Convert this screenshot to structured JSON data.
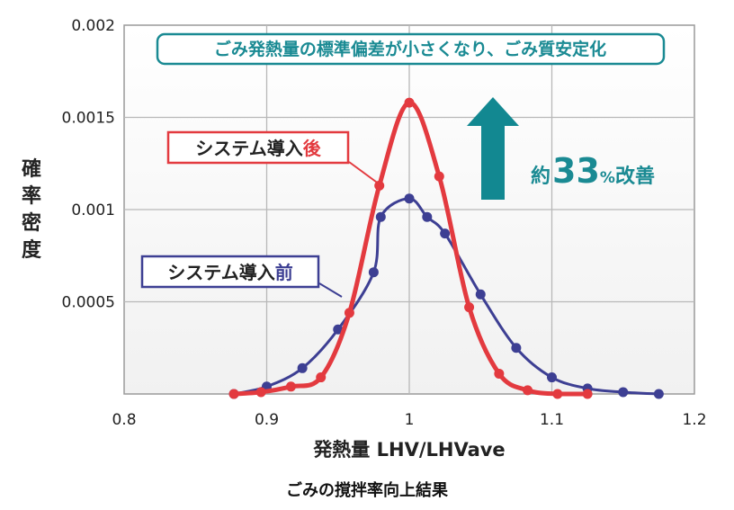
{
  "chart_data": {
    "type": "line",
    "title": "",
    "ylabel": "確率密度",
    "xlabel": "発熱量 LHV/LHVave",
    "caption": "ごみの撹拌率向上結果",
    "xlim": [
      0.8,
      1.2
    ],
    "ylim": [
      0,
      0.002
    ],
    "x_ticks": [
      "0.8",
      "0.9",
      "1",
      "1.1",
      "1.2"
    ],
    "y_ticks": [
      "0.0005",
      "0.001",
      "0.0015",
      "0.002"
    ],
    "grid": true,
    "banner": "ごみ発熱量の標準偏差が小さくなり、ごみ質安定化",
    "improvement": {
      "prefix": "約",
      "value": "33",
      "unit": "%",
      "suffix": "改善"
    },
    "series": [
      {
        "name": "システム導入後",
        "label_main": "システム導入",
        "label_accent": "後",
        "color": "#e33a3f",
        "x": [
          0.877,
          0.896,
          0.917,
          0.938,
          0.958,
          0.979,
          1.0,
          1.021,
          1.042,
          1.063,
          1.083,
          1.104,
          1.125
        ],
        "values": [
          0.0,
          1e-05,
          4e-05,
          9e-05,
          0.00044,
          0.00113,
          0.00158,
          0.00118,
          0.00047,
          0.00011,
          2e-05,
          0.0,
          0.0
        ]
      },
      {
        "name": "システム導入前",
        "label_main": "システム導入",
        "label_accent": "前",
        "color": "#3d3f93",
        "x": [
          0.877,
          0.9,
          0.925,
          0.95,
          0.975,
          0.98,
          1.0,
          1.0125,
          1.025,
          1.05,
          1.075,
          1.1,
          1.125,
          1.15,
          1.175
        ],
        "values": [
          0.0,
          4e-05,
          0.00014,
          0.00035,
          0.00066,
          0.00096,
          0.00106,
          0.00096,
          0.00087,
          0.00054,
          0.00025,
          9e-05,
          3e-05,
          1e-05,
          0.0
        ]
      }
    ]
  }
}
